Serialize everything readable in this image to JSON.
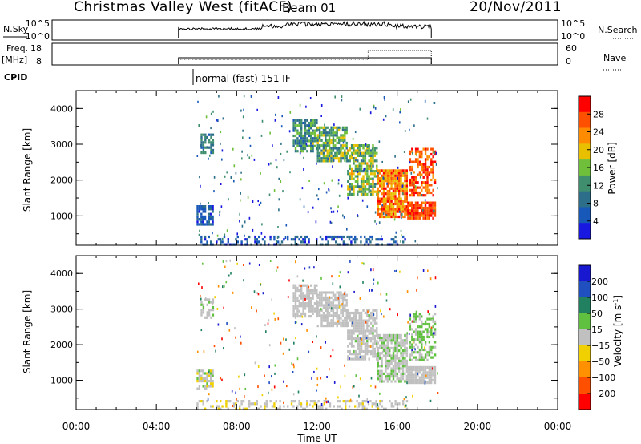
{
  "header": {
    "title": "Christmas Valley West (fitACF)",
    "beam": "Beam 01",
    "date": "20/Nov/2011"
  },
  "top_panels": {
    "nsky_label": "N.Sky",
    "nsky_ticks": [
      "10^5",
      "10^0"
    ],
    "nsearch_label": "N.Search",
    "freq_label": "Freq.",
    "freq_unit": "[MHz]",
    "freq_ticks": [
      "18",
      "8"
    ],
    "nave_label": "Nave",
    "nave_ticks": [
      "60",
      "0"
    ],
    "cpid_label": "CPID",
    "cpid_text": "normal (fast) 151 IF"
  },
  "colors": {
    "power_scale": [
      "#1818e0",
      "#1858b8",
      "#2d6f8a",
      "#3f8f6f",
      "#6fbf3a",
      "#e8c000",
      "#ff8c00",
      "#ff5000",
      "#ff0000"
    ],
    "velocity_scale": [
      "#1818d0",
      "#2050c0",
      "#208060",
      "#60c040",
      "#c0c0c0",
      "#f0d000",
      "#ff9000",
      "#ff5000",
      "#ff0000"
    ]
  },
  "chart_data": [
    {
      "type": "heatmap",
      "panel": "power",
      "ylabel": "Slant Range [km]",
      "ylim": [
        180,
        4500
      ],
      "yticks": [
        "1000",
        "2000",
        "3000",
        "4000"
      ],
      "colorbar_label": "Power [dB]",
      "colorbar_ticks": [
        "4",
        "8",
        "12",
        "16",
        "20",
        "24",
        "28"
      ],
      "colorbar_range": [
        0,
        32
      ],
      "xlim": [
        0,
        24
      ],
      "regions": [
        {
          "t": [
            6.0,
            6.8
          ],
          "r": [
            750,
            1300
          ],
          "v": [
            3,
            9
          ],
          "density": 0.7
        },
        {
          "t": [
            6.2,
            6.8
          ],
          "r": [
            2750,
            3300
          ],
          "v": [
            6,
            14
          ],
          "density": 0.6
        },
        {
          "t": [
            10.8,
            12.0
          ],
          "r": [
            2800,
            3700
          ],
          "v": [
            6,
            18
          ],
          "density": 0.7
        },
        {
          "t": [
            12.0,
            13.5
          ],
          "r": [
            2500,
            3500
          ],
          "v": [
            8,
            20
          ],
          "density": 0.8
        },
        {
          "t": [
            13.5,
            15.0
          ],
          "r": [
            1600,
            3000
          ],
          "v": [
            10,
            22
          ],
          "density": 0.7
        },
        {
          "t": [
            15.0,
            16.5
          ],
          "r": [
            950,
            2300
          ],
          "v": [
            18,
            30
          ],
          "density": 0.85
        },
        {
          "t": [
            16.5,
            17.9
          ],
          "r": [
            950,
            1400
          ],
          "v": [
            24,
            31
          ],
          "density": 0.9
        },
        {
          "t": [
            16.6,
            17.9
          ],
          "r": [
            1600,
            2900
          ],
          "v": [
            22,
            31
          ],
          "density": 0.6
        },
        {
          "t": [
            6.0,
            16.5
          ],
          "r": [
            200,
            450
          ],
          "v": [
            2,
            10
          ],
          "density": 0.35
        }
      ]
    },
    {
      "type": "heatmap",
      "panel": "velocity",
      "ylabel": "Slant Range [km]",
      "ylim": [
        180,
        4500
      ],
      "yticks": [
        "1000",
        "2000",
        "3000",
        "4000"
      ],
      "xlabel": "Time UT",
      "xticks": [
        "00:00",
        "04:00",
        "08:00",
        "12:00",
        "16:00",
        "20:00",
        "00:00"
      ],
      "colorbar_label": "Velocity [m s^-1]",
      "colorbar_ticks": [
        "200",
        "100",
        "50",
        "15",
        "-15",
        "-50",
        "-100",
        "-200"
      ],
      "colorbar_range": [
        -250,
        250
      ],
      "xlim": [
        0,
        24
      ],
      "regions": [
        {
          "t": [
            6.0,
            6.8
          ],
          "r": [
            750,
            1300
          ],
          "v": [
            -40,
            40
          ],
          "density": 0.6
        },
        {
          "t": [
            6.2,
            6.8
          ],
          "r": [
            2750,
            3300
          ],
          "v": [
            -10,
            40
          ],
          "density": 0.5
        },
        {
          "t": [
            10.8,
            12.0
          ],
          "r": [
            2800,
            3700
          ],
          "v": [
            -10,
            10
          ],
          "density": 0.7
        },
        {
          "t": [
            12.0,
            13.5
          ],
          "r": [
            2500,
            3500
          ],
          "v": [
            -12,
            12
          ],
          "density": 0.8
        },
        {
          "t": [
            13.5,
            15.0
          ],
          "r": [
            1600,
            3000
          ],
          "v": [
            -10,
            30
          ],
          "density": 0.7
        },
        {
          "t": [
            15.0,
            16.5
          ],
          "r": [
            950,
            2300
          ],
          "v": [
            0,
            40
          ],
          "density": 0.75
        },
        {
          "t": [
            16.5,
            17.9
          ],
          "r": [
            950,
            1400
          ],
          "v": [
            -12,
            12
          ],
          "density": 0.85
        },
        {
          "t": [
            16.6,
            17.9
          ],
          "r": [
            1600,
            2900
          ],
          "v": [
            15,
            45
          ],
          "density": 0.55
        },
        {
          "t": [
            6.0,
            16.5
          ],
          "r": [
            200,
            450
          ],
          "v": [
            -45,
            20
          ],
          "density": 0.35
        }
      ]
    }
  ]
}
